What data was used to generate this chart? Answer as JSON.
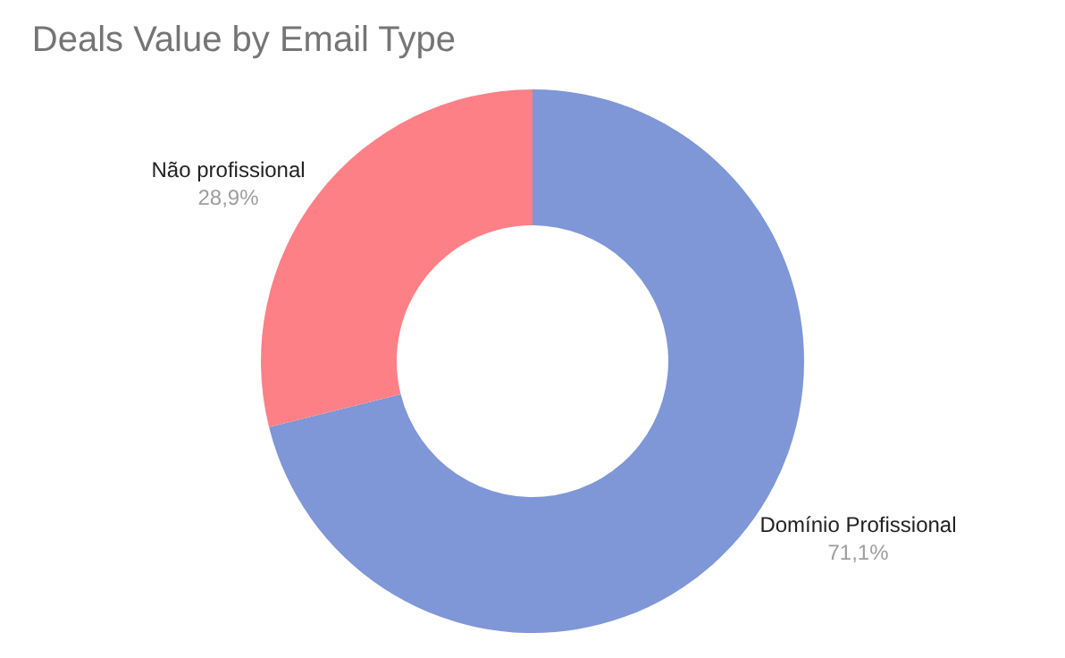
{
  "chart_data": {
    "type": "donut",
    "title": "Deals Value by Email Type",
    "categories": [
      "Domínio Profissional",
      "Não profissional"
    ],
    "values": [
      71.1,
      28.9
    ],
    "colors": [
      "#7f96d7",
      "#fe8087"
    ],
    "value_labels": [
      "71,1%",
      "28,9%"
    ]
  }
}
